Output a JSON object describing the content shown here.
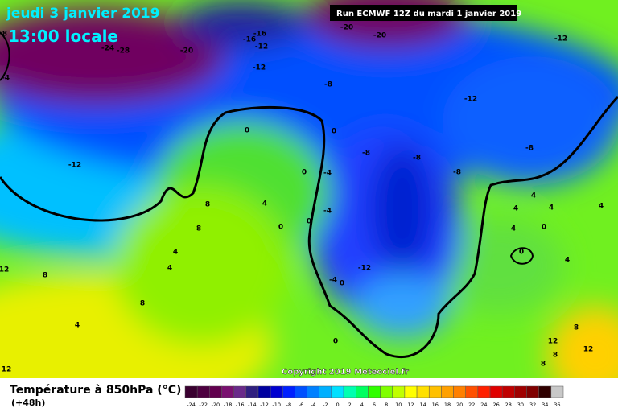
{
  "header": {
    "date": "jeudi 3 janvier 2019",
    "time": "13:00 locale",
    "run": "Run ECMWF 12Z du mardi 1 janvier 2019"
  },
  "copyright": "Copyright 2019 Meteociel.fr",
  "legend": {
    "title": "Température à 850hPa (°C)",
    "lead": "(+48h)",
    "labels": [
      -24,
      -22,
      -20,
      -18,
      -16,
      -14,
      -12,
      -10,
      -8,
      -6,
      -4,
      -2,
      0,
      2,
      4,
      6,
      8,
      10,
      12,
      14,
      16,
      18,
      20,
      22,
      24,
      26,
      28,
      30,
      32,
      34,
      36
    ],
    "colors": [
      "#3a0030",
      "#4d0040",
      "#62004f",
      "#7a1070",
      "#6a2a8a",
      "#302080",
      "#0000a0",
      "#0000d0",
      "#0020ff",
      "#0050ff",
      "#0080ff",
      "#00b0ff",
      "#00e0ff",
      "#00ffb0",
      "#00ff60",
      "#30ff00",
      "#80ff00",
      "#c0ff00",
      "#ffff00",
      "#ffe000",
      "#ffc000",
      "#ffa000",
      "#ff8000",
      "#ff5000",
      "#ff2000",
      "#e00000",
      "#c00000",
      "#a00000",
      "#800000",
      "#300000",
      "#c8c8c8"
    ]
  },
  "contour_labels": [
    "-20",
    "-24",
    "-28",
    "-16",
    "-16",
    "-12",
    "-20",
    "-20",
    "-12",
    "-12",
    "-8",
    "-12",
    "-12",
    "0",
    "0",
    "-8",
    "-8",
    "-8",
    "-8",
    "0",
    "-4",
    "8",
    "4",
    "-4",
    "0",
    "0",
    "8",
    "4",
    "4",
    "4",
    "4",
    "4",
    "0",
    "0",
    "4",
    "4",
    "4",
    "-12",
    "-4",
    "0",
    "8",
    "12",
    "8",
    "4",
    "0",
    "8",
    "12",
    "8",
    "12",
    "12",
    "8",
    "-8",
    "-4"
  ]
}
